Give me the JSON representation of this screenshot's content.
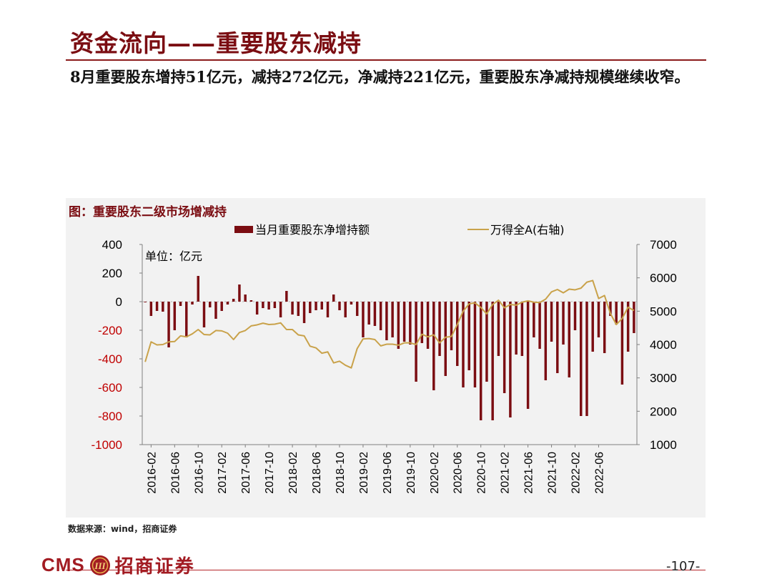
{
  "page": {
    "title": "资金流向——重要股东减持",
    "summary": "8月重要股东增持51亿元，减持272亿元，净减持221亿元，重要股东净减持规模继续收窄。",
    "chart_caption": "图：重要股东二级市场增减持",
    "source": "数据来源：wind，招商证券",
    "page_number": "-107-",
    "logo_text_en": "CMS",
    "logo_text_cn": "招商证券",
    "logo_mark_text": "III"
  },
  "colors": {
    "accent": "#7b0d12",
    "bar": "#7b0d12",
    "line": "#c9a24a",
    "negative_tick": "#c00000",
    "panel": "#f2f2f2"
  },
  "chart_data": {
    "type": "bar+line",
    "unit_label": "单位：亿元",
    "x_ticks": [
      "2016-02",
      "2016-06",
      "2016-10",
      "2017-02",
      "2017-06",
      "2017-10",
      "2018-02",
      "2018-06",
      "2018-10",
      "2019-02",
      "2019-06",
      "2019-10",
      "2020-02",
      "2020-06",
      "2020-10",
      "2021-02",
      "2021-06",
      "2021-10",
      "2022-02",
      "2022-06"
    ],
    "y_left": {
      "min": -1000,
      "max": 400,
      "ticks": [
        400,
        200,
        0,
        -200,
        -400,
        -600,
        -800,
        -1000
      ]
    },
    "y_right": {
      "min": 1000,
      "max": 7000,
      "ticks": [
        7000,
        6000,
        5000,
        4000,
        3000,
        2000,
        1000
      ]
    },
    "series": [
      {
        "name": "当月重要股东净增持额",
        "type": "bar",
        "axis": "left",
        "start": "2016-01",
        "values": [
          -5,
          -100,
          -65,
          -70,
          -320,
          -200,
          -30,
          -250,
          -20,
          180,
          -180,
          -40,
          -120,
          -65,
          -20,
          20,
          120,
          50,
          10,
          -90,
          -45,
          -55,
          -45,
          -110,
          75,
          -90,
          -100,
          -150,
          -80,
          -60,
          -55,
          -110,
          50,
          -60,
          -110,
          -20,
          -100,
          -250,
          -160,
          -170,
          -200,
          -270,
          -250,
          -330,
          -280,
          -300,
          -560,
          -290,
          -330,
          -620,
          -380,
          -520,
          -340,
          -450,
          -600,
          -480,
          -600,
          -830,
          -560,
          -830,
          -380,
          -640,
          -810,
          -370,
          -380,
          -750,
          -250,
          -330,
          -550,
          -280,
          -500,
          -300,
          -530,
          -200,
          -800,
          -800,
          -350,
          -250,
          -360,
          -100,
          -160,
          -580,
          -350,
          -220
        ],
        "color": "#7b0d12"
      },
      {
        "name": "万得全A(右轴)",
        "type": "line",
        "axis": "right",
        "start": "2016-01",
        "values": [
          3480,
          4080,
          3990,
          4000,
          4080,
          4090,
          4260,
          4230,
          4320,
          4450,
          4300,
          4290,
          4420,
          4410,
          4340,
          4150,
          4360,
          4420,
          4560,
          4590,
          4640,
          4600,
          4610,
          4650,
          4450,
          4450,
          4290,
          4260,
          3950,
          3900,
          3740,
          3780,
          3450,
          3500,
          3380,
          3300,
          3880,
          4170,
          4180,
          4150,
          3960,
          4010,
          4010,
          3980,
          4050,
          4050,
          4000,
          4310,
          4230,
          4290,
          4050,
          4220,
          4240,
          4600,
          5000,
          5220,
          5250,
          5110,
          4920,
          5200,
          5330,
          5100,
          5200,
          5180,
          5270,
          5310,
          5270,
          5260,
          5360,
          5580,
          5650,
          5550,
          5660,
          5640,
          5690,
          5870,
          5920,
          5380,
          5470,
          4930,
          4600,
          4780,
          5120,
          5020
        ]
      }
    ]
  }
}
